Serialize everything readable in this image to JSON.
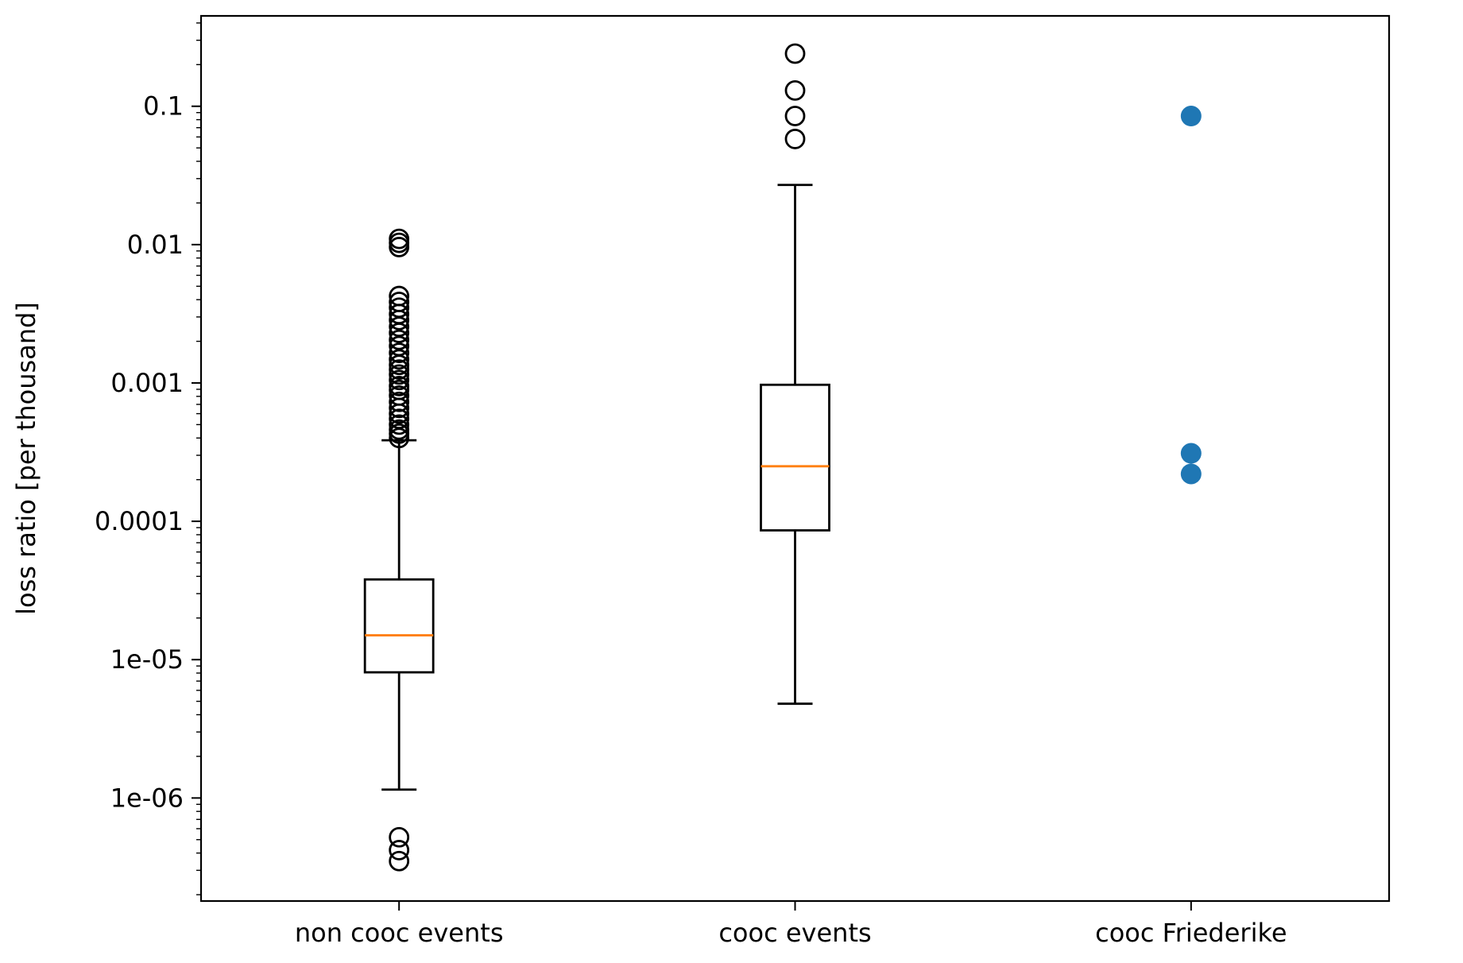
{
  "chart_data": {
    "type": "box",
    "title": "",
    "xlabel": "",
    "ylabel": "loss ratio [per thousand]",
    "yscale": "log",
    "ylim": [
      1.8e-07,
      0.45
    ],
    "yticks": [
      {
        "value": 1e-06,
        "label": "1e-06"
      },
      {
        "value": 1e-05,
        "label": "1e-05"
      },
      {
        "value": 0.0001,
        "label": "0.0001"
      },
      {
        "value": 0.001,
        "label": "0.001"
      },
      {
        "value": 0.01,
        "label": "0.01"
      },
      {
        "value": 0.1,
        "label": "0.1"
      }
    ],
    "categories": [
      "non cooc events",
      "cooc events",
      "cooc Friederike"
    ],
    "grid": false,
    "boxes": [
      {
        "category": "non cooc events",
        "whisker_low": 1.15e-06,
        "q1": 8.1e-06,
        "median": 1.5e-05,
        "q3": 3.8e-05,
        "whisker_high": 0.000385,
        "outliers": [
          3.5e-07,
          4.2e-07,
          5.2e-07,
          0.0004,
          0.00043,
          0.00046,
          0.0005,
          0.00055,
          0.0006,
          0.00066,
          0.00073,
          0.00081,
          0.00089,
          0.00095,
          0.00105,
          0.00115,
          0.00125,
          0.00135,
          0.00148,
          0.00165,
          0.00185,
          0.00205,
          0.0023,
          0.00255,
          0.00285,
          0.00315,
          0.0035,
          0.00385,
          0.00425,
          0.0096,
          0.0103,
          0.011
        ]
      },
      {
        "category": "cooc events",
        "whisker_low": 4.8e-06,
        "q1": 8.6e-05,
        "median": 0.00025,
        "q3": 0.00097,
        "whisker_high": 0.027,
        "outliers": [
          0.058,
          0.085,
          0.13,
          0.24
        ]
      }
    ],
    "points": [
      {
        "category": "cooc Friederike",
        "values": [
          0.085,
          0.00031,
          0.00022
        ]
      }
    ],
    "colors": {
      "box_line": "#000000",
      "median_line": "#ff7f0e",
      "point_fill": "#1f77b4",
      "outlier_edge": "#000000"
    }
  }
}
